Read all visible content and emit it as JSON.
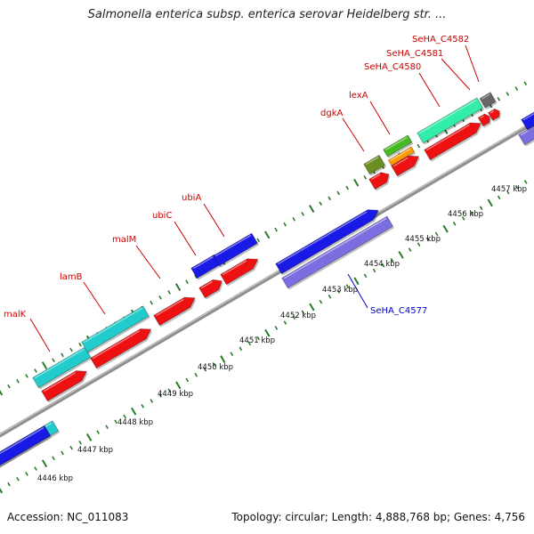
{
  "title": "Salmonella enterica subsp. enterica serovar Heidelberg str. ...",
  "footer": {
    "accession": "Accession: NC_011083",
    "summary": "Topology: circular; Length: 4,888,768 bp; Genes: 4,756"
  },
  "colors": {
    "backbone": "#9a9a9a",
    "tick": "#2a7a2a",
    "label_red": "#cc0000",
    "label_blue": "#0000cc",
    "blue": "#1a1ae6",
    "cyan": "#22cccc",
    "red": "#ee1111",
    "purple": "#7b6ee0",
    "mint": "#33eeaa",
    "green": "#44bb22",
    "orange": "#ff9900",
    "olive": "#6b8e23",
    "gray": "#666666"
  },
  "scale_labels": [
    "4446 kbp",
    "4447 kbp",
    "4448 kbp",
    "4449 kbp",
    "4450 kbp",
    "4451 kbp",
    "4452 kbp",
    "4453 kbp",
    "4454 kbp",
    "4455 kbp",
    "4456 kbp",
    "4457 kbp"
  ],
  "gene_labels": [
    {
      "text": "malK",
      "color": "red"
    },
    {
      "text": "lamB",
      "color": "red"
    },
    {
      "text": "malM",
      "color": "red"
    },
    {
      "text": "ubiC",
      "color": "red"
    },
    {
      "text": "ubiA",
      "color": "red"
    },
    {
      "text": "dgkA",
      "color": "red"
    },
    {
      "text": "lexA",
      "color": "red"
    },
    {
      "text": "SeHA_C4580",
      "color": "red"
    },
    {
      "text": "SeHA_C4581",
      "color": "red"
    },
    {
      "text": "SeHA_C4582",
      "color": "red"
    },
    {
      "text": "SeHA_C4577",
      "color": "blue"
    }
  ]
}
